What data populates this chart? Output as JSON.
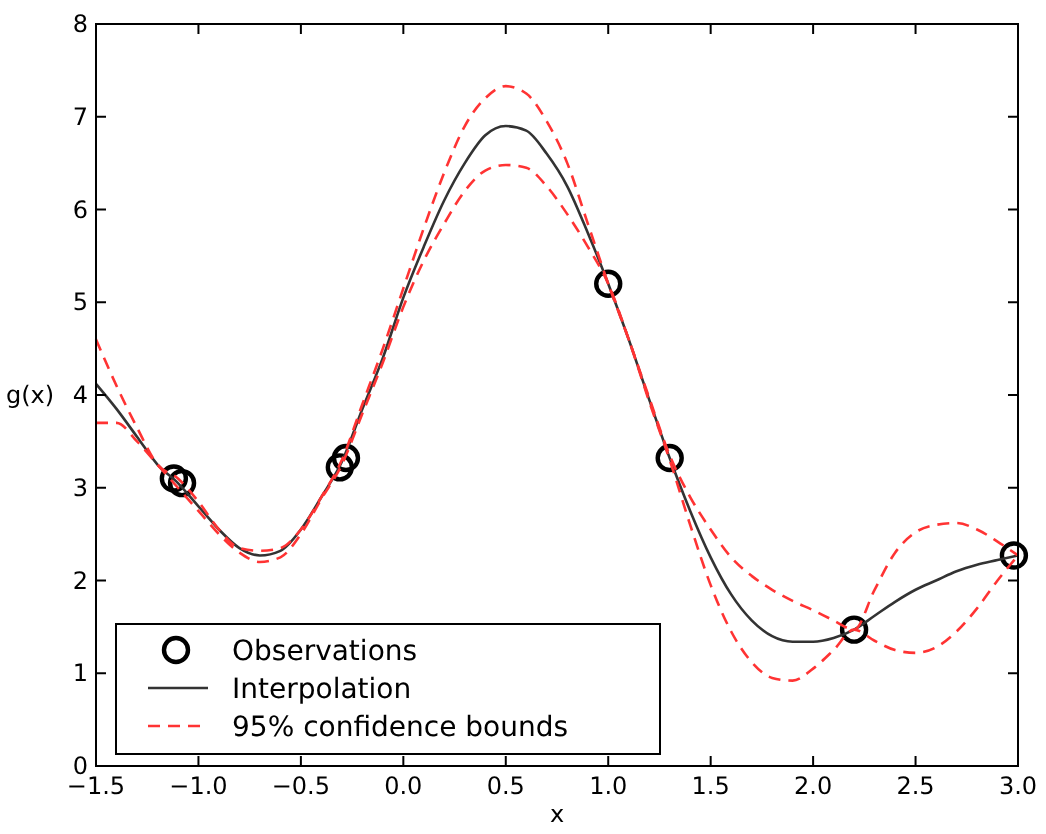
{
  "chart_data": {
    "type": "line",
    "xlabel": "x",
    "ylabel": "g(x)",
    "xlim": [
      -1.5,
      3.0
    ],
    "ylim": [
      0,
      8
    ],
    "xticks": [
      {
        "value": -1.5,
        "label": "−1.5"
      },
      {
        "value": -1.0,
        "label": "−1.0"
      },
      {
        "value": -0.5,
        "label": "−0.5"
      },
      {
        "value": 0,
        "label": "0.0"
      },
      {
        "value": 0.5,
        "label": "0.5"
      },
      {
        "value": 1.0,
        "label": "1.0"
      },
      {
        "value": 1.5,
        "label": "1.5"
      },
      {
        "value": 2.0,
        "label": "2.0"
      },
      {
        "value": 2.5,
        "label": "2.5"
      },
      {
        "value": 3.0,
        "label": "3.0"
      }
    ],
    "yticks": [
      0,
      1,
      2,
      3,
      4,
      5,
      6,
      7,
      8
    ],
    "grid": false,
    "legend": "bottom left",
    "series": [
      {
        "name": "Observations",
        "type": "scatter",
        "marker": "circle",
        "color": "#000000",
        "x": [
          -1.12,
          -1.08,
          -0.31,
          -0.28,
          1.0,
          1.3,
          2.2,
          2.98
        ],
        "values": [
          3.1,
          3.05,
          3.22,
          3.32,
          5.2,
          3.32,
          1.47,
          2.27
        ]
      },
      {
        "name": "Interpolation",
        "line_style": "solid",
        "color": "#333333",
        "x": [
          -1.5,
          -1.4,
          -1.3,
          -1.2,
          -1.1,
          -1.0,
          -0.9,
          -0.8,
          -0.7,
          -0.6,
          -0.5,
          -0.4,
          -0.3,
          -0.2,
          -0.1,
          0.0,
          0.1,
          0.2,
          0.3,
          0.4,
          0.5,
          0.6,
          0.7,
          0.8,
          0.9,
          1.0,
          1.1,
          1.2,
          1.3,
          1.4,
          1.5,
          1.6,
          1.7,
          1.8,
          1.9,
          2.0,
          2.1,
          2.2,
          2.3,
          2.4,
          2.5,
          2.6,
          2.7,
          2.8,
          2.9,
          3.0
        ],
        "values": [
          4.12,
          3.85,
          3.55,
          3.25,
          3.05,
          2.8,
          2.55,
          2.35,
          2.27,
          2.32,
          2.55,
          2.9,
          3.28,
          3.85,
          4.4,
          5.05,
          5.6,
          6.1,
          6.5,
          6.8,
          6.9,
          6.85,
          6.6,
          6.25,
          5.75,
          5.2,
          4.6,
          3.95,
          3.32,
          2.75,
          2.25,
          1.85,
          1.57,
          1.4,
          1.34,
          1.34,
          1.38,
          1.47,
          1.62,
          1.77,
          1.9,
          2.0,
          2.1,
          2.17,
          2.22,
          2.27
        ]
      },
      {
        "name": "95% confidence bounds",
        "line_style": "dashed",
        "color": "#ff3333",
        "x": [
          -1.5,
          -1.4,
          -1.3,
          -1.2,
          -1.1,
          -1.0,
          -0.9,
          -0.8,
          -0.7,
          -0.6,
          -0.5,
          -0.4,
          -0.3,
          -0.2,
          -0.1,
          0.0,
          0.1,
          0.2,
          0.3,
          0.4,
          0.5,
          0.6,
          0.7,
          0.8,
          0.9,
          1.0,
          1.1,
          1.2,
          1.3,
          1.4,
          1.5,
          1.6,
          1.7,
          1.8,
          1.9,
          2.0,
          2.1,
          2.2,
          2.3,
          2.4,
          2.5,
          2.6,
          2.7,
          2.8,
          2.9,
          3.0
        ],
        "values": [
          4.6,
          4.1,
          3.65,
          3.25,
          3.1,
          2.85,
          2.55,
          2.35,
          2.32,
          2.35,
          2.55,
          2.9,
          3.3,
          3.9,
          4.5,
          5.15,
          5.8,
          6.4,
          6.9,
          7.2,
          7.33,
          7.25,
          6.95,
          6.5,
          5.85,
          5.2,
          4.6,
          3.97,
          3.35,
          2.9,
          2.55,
          2.25,
          2.05,
          1.9,
          1.78,
          1.68,
          1.57,
          1.47,
          1.9,
          2.3,
          2.52,
          2.6,
          2.62,
          2.55,
          2.42,
          2.27
        ]
      },
      {
        "line_style": "dashed",
        "color": "#ff3333",
        "x": [
          -1.5,
          -1.4,
          -1.3,
          -1.2,
          -1.1,
          -1.0,
          -0.9,
          -0.8,
          -0.7,
          -0.6,
          -0.5,
          -0.4,
          -0.3,
          -0.2,
          -0.1,
          0.0,
          0.1,
          0.2,
          0.3,
          0.4,
          0.5,
          0.6,
          0.7,
          0.8,
          0.9,
          1.0,
          1.1,
          1.2,
          1.3,
          1.4,
          1.5,
          1.6,
          1.7,
          1.8,
          1.9,
          2.0,
          2.1,
          2.2,
          2.3,
          2.4,
          2.5,
          2.6,
          2.7,
          2.8,
          2.9,
          3.0
        ],
        "values": [
          3.7,
          3.7,
          3.5,
          3.25,
          3.0,
          2.75,
          2.5,
          2.3,
          2.2,
          2.25,
          2.5,
          2.88,
          3.25,
          3.8,
          4.35,
          4.95,
          5.45,
          5.85,
          6.2,
          6.42,
          6.48,
          6.45,
          6.25,
          5.95,
          5.6,
          5.2,
          4.6,
          3.93,
          3.3,
          2.6,
          1.95,
          1.45,
          1.12,
          0.95,
          0.92,
          1.05,
          1.25,
          1.47,
          1.35,
          1.25,
          1.22,
          1.28,
          1.45,
          1.7,
          2.0,
          2.27
        ]
      }
    ]
  }
}
